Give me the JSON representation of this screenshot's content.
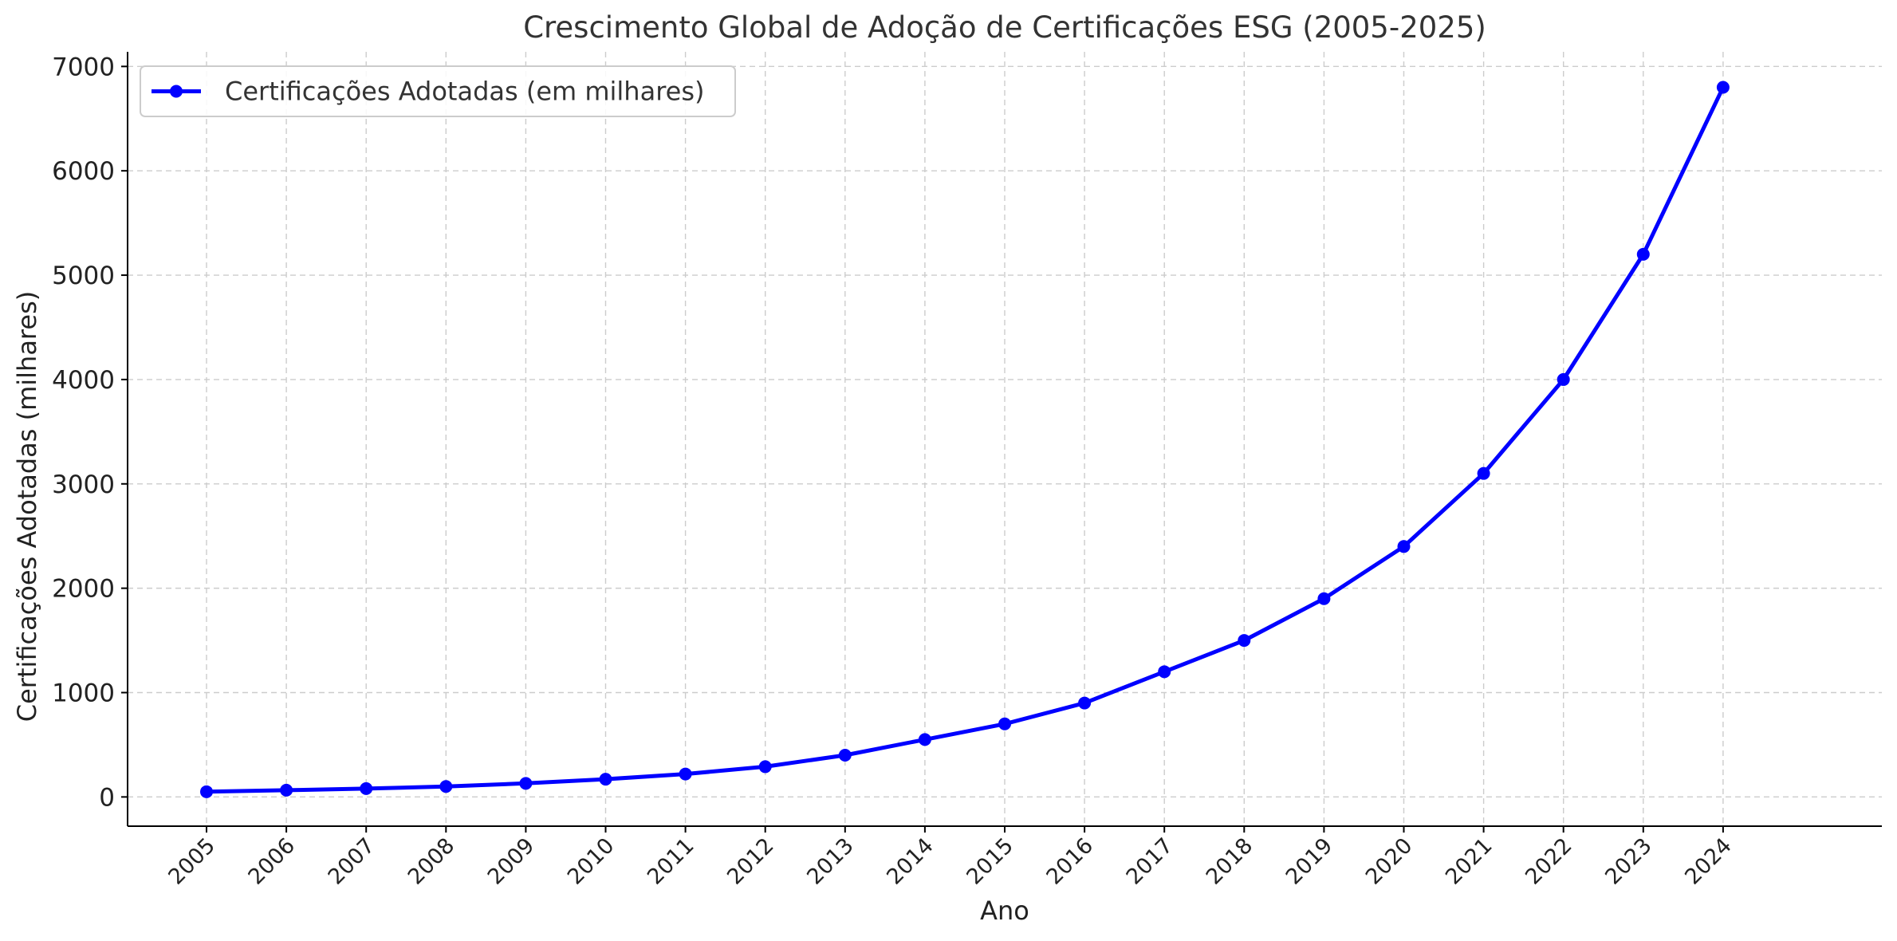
{
  "chart_data": {
    "type": "line",
    "title": "Crescimento Global de Adoção de Certificações ESG (2005-2025)",
    "xlabel": "Ano",
    "ylabel": "Certificações Adotadas (milhares)",
    "categories": [
      "2005",
      "2006",
      "2007",
      "2008",
      "2009",
      "2010",
      "2011",
      "2012",
      "2013",
      "2014",
      "2015",
      "2016",
      "2017",
      "2018",
      "2019",
      "2020",
      "2021",
      "2022",
      "2023",
      "2024"
    ],
    "yticks": [
      0,
      1000,
      2000,
      3000,
      4000,
      5000,
      6000,
      7000
    ],
    "ylim": [
      -280,
      7140
    ],
    "grid": true,
    "legend_position": "top-left",
    "series": [
      {
        "name": "Certificações Adotadas (em milhares)",
        "color": "#0000ff",
        "marker": "circle",
        "values": [
          50,
          65,
          80,
          100,
          130,
          170,
          220,
          290,
          400,
          550,
          700,
          900,
          1200,
          1500,
          1900,
          2400,
          3100,
          4000,
          5200,
          6800
        ]
      }
    ]
  }
}
